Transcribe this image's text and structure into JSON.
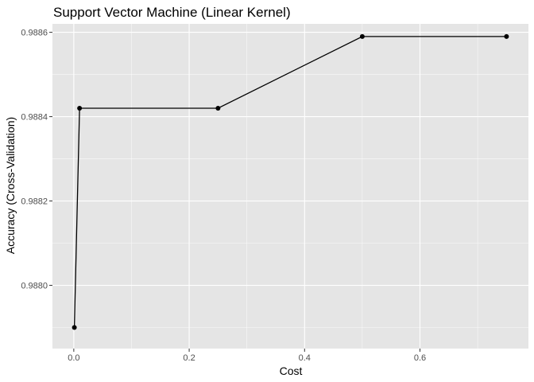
{
  "chart_data": {
    "type": "line",
    "title": "Support Vector Machine (Linear Kernel)",
    "xlabel": "Cost",
    "ylabel": "Accuracy (Cross-Validation)",
    "x": [
      0.001,
      0.01,
      0.25,
      0.5,
      0.75
    ],
    "y": [
      0.9879,
      0.98842,
      0.98842,
      0.98859,
      0.98859
    ],
    "xlim": [
      -0.037,
      0.788
    ],
    "ylim": [
      0.98785,
      0.98862
    ],
    "xticks": [
      0.0,
      0.2,
      0.4,
      0.6
    ],
    "xtick_labels": [
      "0.0",
      "0.2",
      "0.4",
      "0.6"
    ],
    "yticks": [
      0.988,
      0.9882,
      0.9884,
      0.9886
    ],
    "ytick_labels": [
      "0.9880",
      "0.9882",
      "0.9884",
      "0.9886"
    ],
    "grid": true,
    "colors": {
      "panel": "#e5e5e5",
      "grid_major": "#ffffff",
      "line": "#000000",
      "point": "#000000",
      "tick": "#333333"
    }
  }
}
